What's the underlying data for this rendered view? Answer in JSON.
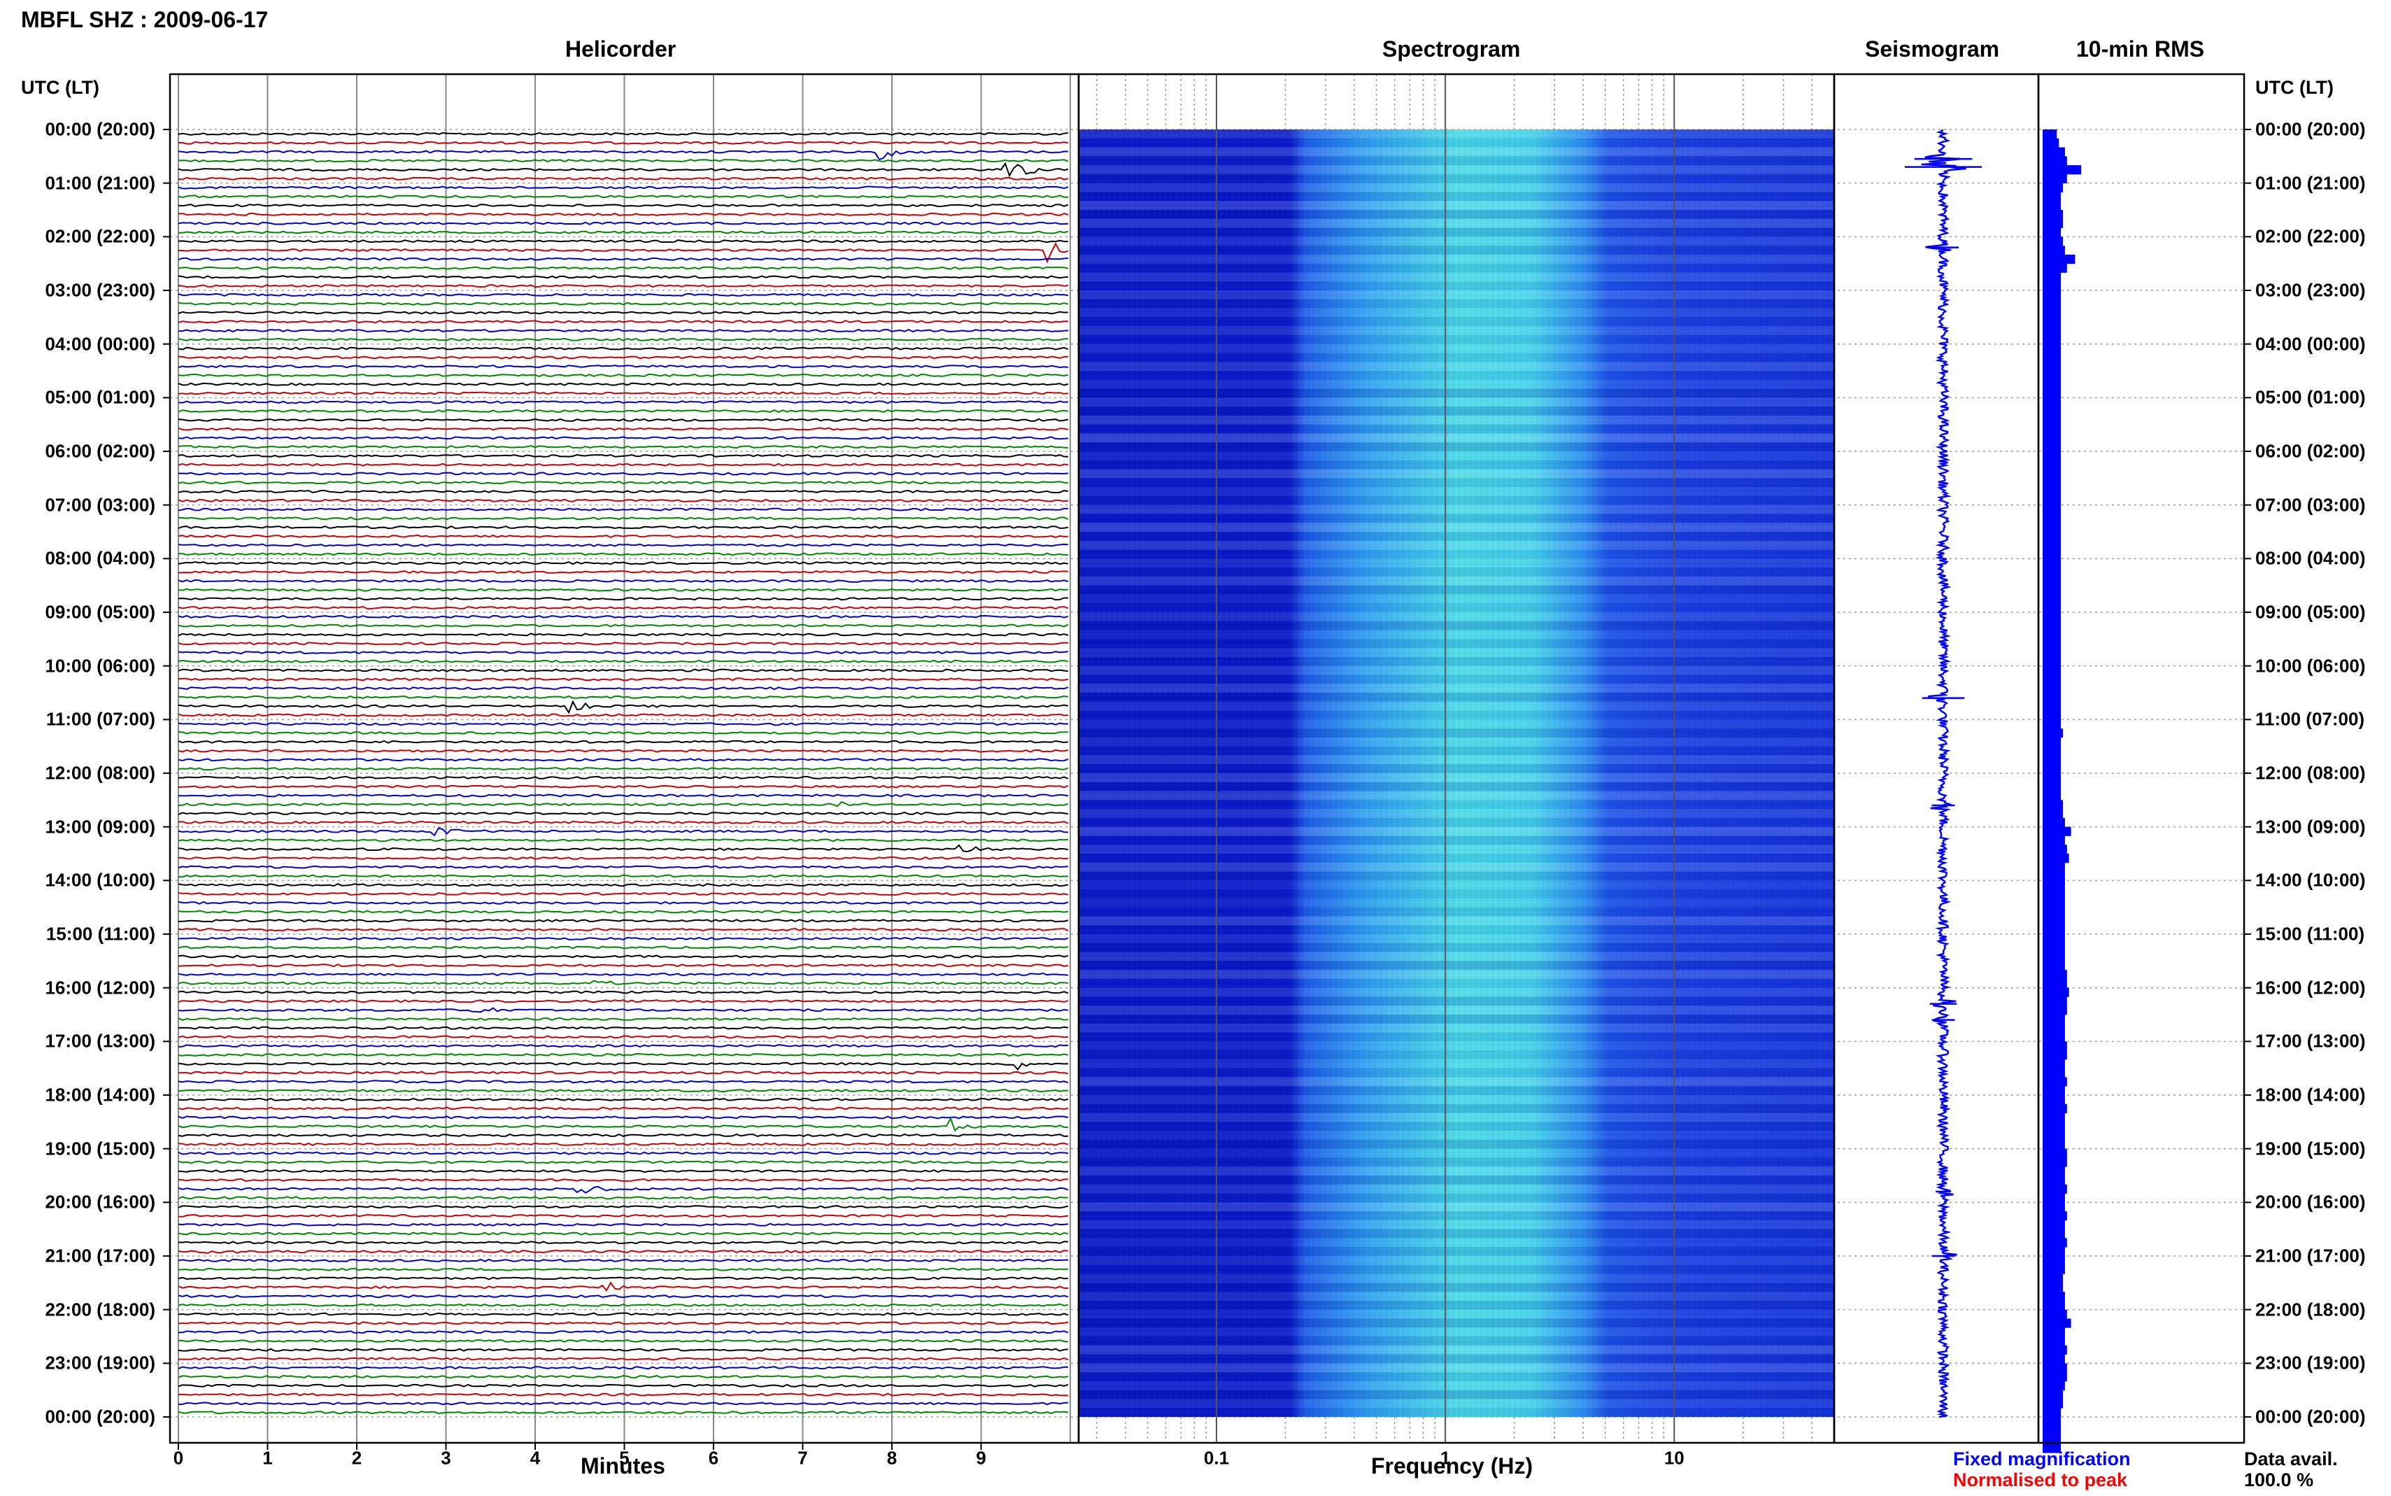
{
  "station_title": "MBFL SHZ : 2009-06-17",
  "panels": {
    "helicorder": "Helicorder",
    "spectrogram": "Spectrogram",
    "seismogram": "Seismogram",
    "rms": "10-min RMS"
  },
  "time_axis_label": "UTC (LT)",
  "x_labels": {
    "minutes": "Minutes",
    "frequency": "Frequency (Hz)"
  },
  "legend": {
    "fixed": "Fixed magnification",
    "normalised": "Normalised to peak",
    "fixed_color": "#0000ff",
    "normalised_color": "#ff0000"
  },
  "data_availability": {
    "label": "Data avail.",
    "value": "100.0 %"
  },
  "colors": {
    "trace_cycle": [
      "#000000",
      "#cc0000",
      "#0000cc",
      "#008800"
    ],
    "spectrogram_low": "#0a1fd0",
    "spectrogram_high": "#4fe8e0",
    "seismogram": "#0000ff",
    "rms": "#0000ff"
  },
  "chart_data": [
    {
      "type": "line",
      "panel": "helicorder",
      "xlabel": "Minutes",
      "xlim": [
        0,
        10
      ],
      "x_ticks": [
        "0",
        "1",
        "2",
        "3",
        "4",
        "5",
        "6",
        "7",
        "8",
        "9"
      ],
      "ylabel": "UTC (LT)",
      "rows_per_hour": 6,
      "hours": 24,
      "y_ticks_left": [
        "00:00 (20:00)",
        "01:00 (21:00)",
        "02:00 (22:00)",
        "03:00 (23:00)",
        "04:00 (00:00)",
        "05:00 (01:00)",
        "06:00 (02:00)",
        "07:00 (03:00)",
        "08:00 (04:00)",
        "09:00 (05:00)",
        "10:00 (06:00)",
        "11:00 (07:00)",
        "12:00 (08:00)",
        "13:00 (09:00)",
        "14:00 (10:00)",
        "15:00 (11:00)",
        "16:00 (12:00)",
        "17:00 (13:00)",
        "18:00 (14:00)",
        "19:00 (15:00)",
        "20:00 (16:00)",
        "21:00 (17:00)",
        "22:00 (18:00)",
        "23:00 (19:00)",
        "00:00 (20:00)"
      ],
      "events": [
        {
          "row": 2,
          "minute": 7.9,
          "amp": 0.5
        },
        {
          "row": 4,
          "minute": 9.3,
          "amp": 1.0
        },
        {
          "row": 13,
          "minute": 9.75,
          "amp": 0.8
        },
        {
          "row": 64,
          "minute": 4.4,
          "amp": 0.5
        },
        {
          "row": 75,
          "minute": 7.4,
          "amp": 0.4
        },
        {
          "row": 78,
          "minute": 2.9,
          "amp": 0.3
        },
        {
          "row": 80,
          "minute": 8.8,
          "amp": 0.3
        },
        {
          "row": 95,
          "minute": 4.6,
          "amp": 0.4
        },
        {
          "row": 98,
          "minute": 3.3,
          "amp": 0.4
        },
        {
          "row": 104,
          "minute": 9.4,
          "amp": 0.4
        },
        {
          "row": 109,
          "minute": 1.8,
          "amp": 0.3
        },
        {
          "row": 111,
          "minute": 8.7,
          "amp": 0.5
        },
        {
          "row": 118,
          "minute": 4.5,
          "amp": 0.4
        },
        {
          "row": 125,
          "minute": 0.3,
          "amp": 0.3
        },
        {
          "row": 129,
          "minute": 4.8,
          "amp": 0.3
        }
      ]
    },
    {
      "type": "heatmap",
      "panel": "spectrogram",
      "xlabel": "Frequency (Hz)",
      "x_scale": "log",
      "xlim": [
        0.025,
        50
      ],
      "x_ticks": [
        "0.1",
        "1",
        "10"
      ],
      "peak_band_hz": [
        0.25,
        1.8
      ],
      "time_rows": 144
    },
    {
      "type": "line",
      "panel": "seismogram",
      "hours": 24,
      "spikes": [
        {
          "hour": 0.55,
          "amp": 0.75
        },
        {
          "hour": 0.7,
          "amp": 1.0
        },
        {
          "hour": 2.2,
          "amp": 0.4
        },
        {
          "hour": 10.6,
          "amp": 0.55
        },
        {
          "hour": 12.6,
          "amp": 0.3
        },
        {
          "hour": 16.3,
          "amp": 0.35
        },
        {
          "hour": 16.6,
          "amp": 0.3
        },
        {
          "hour": 19.8,
          "amp": 0.2
        },
        {
          "hour": 21.0,
          "amp": 0.3
        }
      ]
    },
    {
      "type": "bar",
      "panel": "10-min RMS",
      "orientation": "horizontal",
      "bins": 144,
      "values": [
        0.35,
        0.4,
        0.55,
        0.6,
        0.95,
        0.6,
        0.5,
        0.45,
        0.45,
        0.5,
        0.5,
        0.45,
        0.5,
        0.55,
        0.8,
        0.6,
        0.45,
        0.45,
        0.45,
        0.45,
        0.45,
        0.45,
        0.45,
        0.45,
        0.45,
        0.45,
        0.45,
        0.45,
        0.45,
        0.45,
        0.45,
        0.45,
        0.45,
        0.45,
        0.45,
        0.45,
        0.45,
        0.45,
        0.45,
        0.45,
        0.45,
        0.45,
        0.45,
        0.45,
        0.45,
        0.45,
        0.45,
        0.45,
        0.45,
        0.45,
        0.45,
        0.45,
        0.45,
        0.45,
        0.45,
        0.45,
        0.45,
        0.45,
        0.45,
        0.45,
        0.45,
        0.45,
        0.45,
        0.45,
        0.45,
        0.45,
        0.45,
        0.5,
        0.45,
        0.45,
        0.45,
        0.45,
        0.45,
        0.45,
        0.45,
        0.5,
        0.5,
        0.55,
        0.7,
        0.55,
        0.6,
        0.65,
        0.55,
        0.55,
        0.55,
        0.55,
        0.55,
        0.55,
        0.55,
        0.55,
        0.55,
        0.55,
        0.55,
        0.55,
        0.6,
        0.6,
        0.65,
        0.6,
        0.6,
        0.55,
        0.55,
        0.55,
        0.6,
        0.6,
        0.55,
        0.55,
        0.6,
        0.55,
        0.55,
        0.6,
        0.55,
        0.55,
        0.55,
        0.55,
        0.6,
        0.6,
        0.55,
        0.55,
        0.6,
        0.55,
        0.55,
        0.6,
        0.55,
        0.55,
        0.6,
        0.55,
        0.55,
        0.55,
        0.5,
        0.5,
        0.55,
        0.55,
        0.6,
        0.7,
        0.55,
        0.55,
        0.6,
        0.55,
        0.6,
        0.6,
        0.55,
        0.5,
        0.5,
        0.45,
        0.45,
        0.45,
        0.45,
        0.45
      ]
    }
  ]
}
